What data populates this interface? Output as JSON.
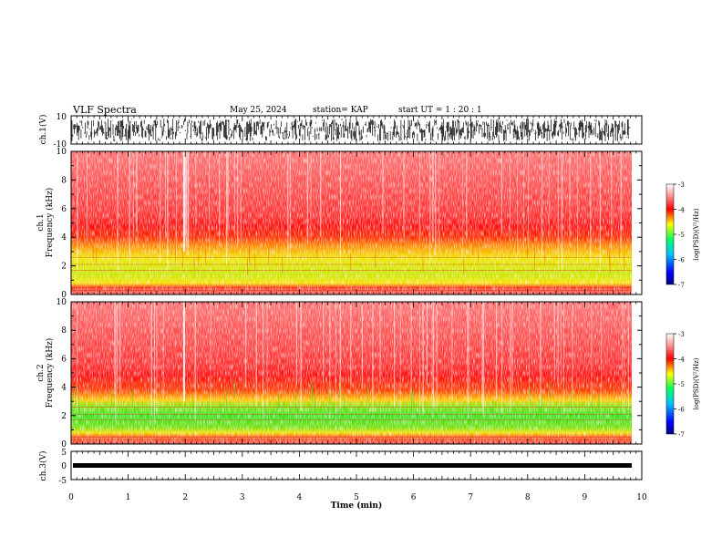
{
  "header": {
    "title": "VLF Spectra",
    "date": "May 25, 2024",
    "station": "station= KAP",
    "start": "start  UT =   1 : 20 : 1"
  },
  "colors": {
    "background": "#ffffff",
    "axis": "#000000",
    "spectrogram_low": "#ffe600",
    "spectrogram_mid": "#ff2020",
    "spectrogram_band": "#3ce11e",
    "colorbar_stops": [
      "#000080",
      "#0000ff",
      "#00c0ff",
      "#00ff60",
      "#ffff00",
      "#ff0000",
      "#ffffff"
    ]
  },
  "chart_data": [
    {
      "type": "line",
      "panel": "ch1_waveform",
      "ylabel": "ch.1(V)",
      "ylim": [
        -10,
        10
      ],
      "yticks": [
        "10",
        "-10"
      ],
      "x_range_min": [
        0,
        10
      ],
      "data_extent_min": 9.8,
      "description_values": {
        "amplitude_V": 10,
        "baseline_V": 0
      }
    },
    {
      "type": "heatmap",
      "panel": "ch1_spectrogram",
      "ylabel_line1": "ch.1",
      "ylabel_line2": "Frequency (kHz)",
      "ylim": [
        0,
        10
      ],
      "yticks": [
        "0",
        "2",
        "4",
        "6",
        "8",
        "10"
      ],
      "x_range_min": [
        0,
        10
      ],
      "data_extent_min": 9.8,
      "band_profile_kHz": [
        {
          "from": 0.0,
          "to": 0.4,
          "level": -4.3
        },
        {
          "from": 0.4,
          "to": 1.0,
          "level": -3.7
        },
        {
          "from": 1.0,
          "to": 3.0,
          "level": -4.6
        },
        {
          "from": 3.0,
          "to": 4.0,
          "level": -4.1
        },
        {
          "from": 4.0,
          "to": 5.0,
          "level": -3.6
        },
        {
          "from": 5.0,
          "to": 10.0,
          "level": -3.1
        }
      ],
      "colorbar": {
        "label": "log(PSD)(V²/Hz)",
        "ticks": [
          "-3",
          "-4",
          "-5",
          "-6",
          "-7"
        ],
        "range": [
          -7,
          -3
        ]
      }
    },
    {
      "type": "heatmap",
      "panel": "ch2_spectrogram",
      "ylabel_line1": "ch.2",
      "ylabel_line2": "Frequency (kHz)",
      "ylim": [
        0,
        10
      ],
      "yticks": [
        "0",
        "2",
        "4",
        "6",
        "8",
        "10"
      ],
      "x_range_min": [
        0,
        10
      ],
      "data_extent_min": 9.8,
      "band_profile_kHz": [
        {
          "from": 0.0,
          "to": 0.8,
          "level": -3.8
        },
        {
          "from": 0.8,
          "to": 3.0,
          "level": -4.9
        },
        {
          "from": 3.0,
          "to": 4.0,
          "level": -4.2
        },
        {
          "from": 4.0,
          "to": 5.0,
          "level": -3.6
        },
        {
          "from": 5.0,
          "to": 10.0,
          "level": -3.1
        }
      ],
      "colorbar": {
        "label": "log(PSD)(V²/Hz)",
        "ticks": [
          "-3",
          "-4",
          "-5",
          "-6",
          "-7"
        ],
        "range": [
          -7,
          -3
        ]
      }
    },
    {
      "type": "line",
      "panel": "ch3_waveform",
      "ylabel": "ch.3(V)",
      "ylim": [
        -5,
        5
      ],
      "yticks": [
        "5",
        "0",
        "-5"
      ],
      "x_range_min": [
        0,
        10
      ],
      "data_extent_min": 9.8,
      "description_values": {
        "level_V": -1,
        "thickness_V": 0.8
      }
    }
  ],
  "xaxis": {
    "label": "Time  (min)",
    "ticks": [
      "0",
      "1",
      "2",
      "3",
      "4",
      "5",
      "6",
      "7",
      "8",
      "9",
      "10"
    ]
  }
}
